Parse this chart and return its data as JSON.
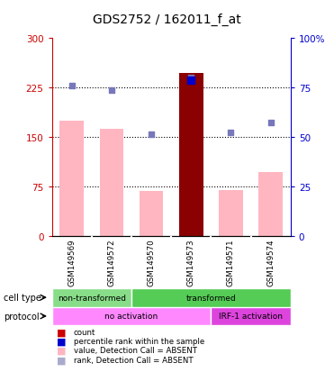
{
  "title": "GDS2752 / 162011_f_at",
  "samples": [
    "GSM149569",
    "GSM149572",
    "GSM149570",
    "GSM149573",
    "GSM149571",
    "GSM149574"
  ],
  "bar_values": [
    175,
    163,
    68,
    247,
    70,
    97
  ],
  "bar_colors": [
    "#FFB6C1",
    "#FFB6C1",
    "#FFB6C1",
    "#8B0000",
    "#FFB6C1",
    "#FFB6C1"
  ],
  "rank_dots": [
    228,
    222,
    155,
    240,
    157,
    172
  ],
  "blue_dot_color": "#7777BB",
  "special_blue_dot": [
    null,
    null,
    null,
    237,
    null,
    null
  ],
  "dark_blue_color": "#0000CC",
  "ylim_left": [
    0,
    300
  ],
  "ylim_right": [
    0,
    100
  ],
  "yticks_left": [
    0,
    75,
    150,
    225,
    300
  ],
  "yticks_right": [
    0,
    25,
    50,
    75,
    100
  ],
  "ytick_labels_left": [
    "0",
    "75",
    "150",
    "225",
    "300"
  ],
  "ytick_labels_right": [
    "0",
    "25",
    "50",
    "75",
    "100%"
  ],
  "cell_type_labels": [
    [
      "non-transformed",
      0,
      2
    ],
    [
      "transformed",
      2,
      6
    ]
  ],
  "cell_type_colors": [
    "#88DD88",
    "#55CC55"
  ],
  "protocol_labels": [
    [
      "no activation",
      0,
      4
    ],
    [
      "IRF-1 activation",
      4,
      6
    ]
  ],
  "protocol_colors": [
    "#FF88FF",
    "#DD44DD"
  ],
  "legend_items": [
    [
      "count",
      "#CC0000"
    ],
    [
      "percentile rank within the sample",
      "#0000CC"
    ],
    [
      "value, Detection Call = ABSENT",
      "#FFB6C1"
    ],
    [
      "rank, Detection Call = ABSENT",
      "#AAAACC"
    ]
  ],
  "left_axis_color": "#CC0000",
  "right_axis_color": "#0000CC",
  "bg_color": "#FFFFFF",
  "plot_bg_color": "#FFFFFF",
  "grid_color": "#000000",
  "sample_box_color": "#C8C8C8",
  "sample_box_border": "#FFFFFF"
}
